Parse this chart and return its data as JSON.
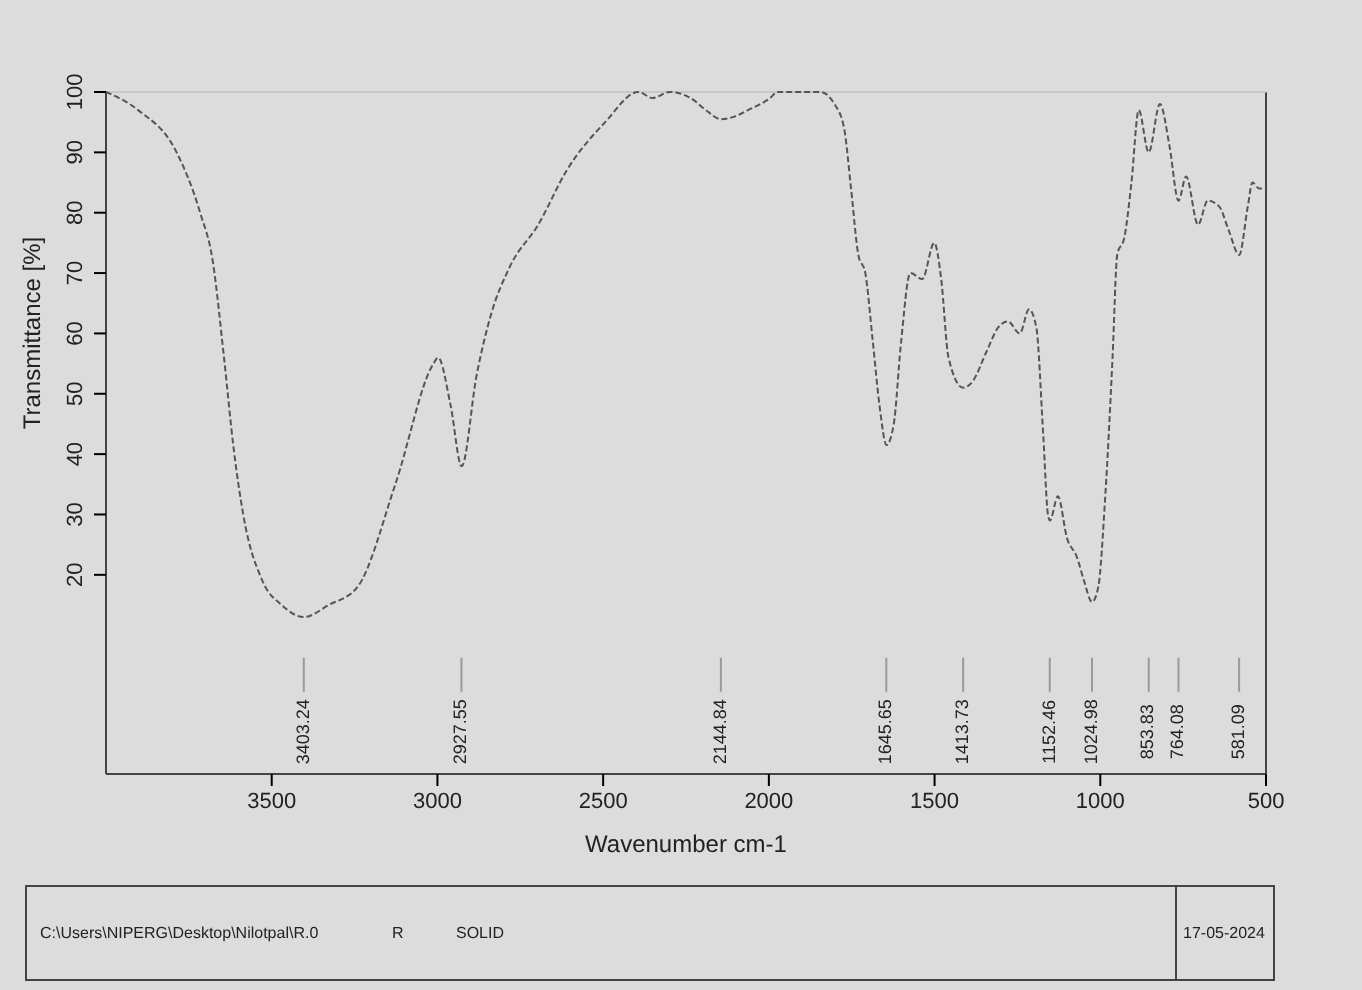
{
  "chart_data": {
    "type": "line",
    "xlabel": "Wavenumber cm-1",
    "ylabel": "Transmittance [%]",
    "xlim": [
      4000,
      500
    ],
    "xticks": [
      3500,
      3000,
      2500,
      2000,
      1500,
      1000,
      500
    ],
    "ylim": [
      -13,
      100
    ],
    "yticks": [
      20,
      30,
      40,
      50,
      60,
      70,
      80,
      90,
      100
    ],
    "grid": false,
    "line_style": "dashed",
    "marker": "none",
    "series": [
      {
        "color": "#555555",
        "x": [
          4000,
          3903,
          3787,
          3716,
          3678,
          3644,
          3615,
          3586,
          3528,
          3470,
          3403,
          3328,
          3241,
          3127,
          3012,
          2998,
          2960,
          2927,
          2882,
          2839,
          2782,
          2696,
          2610,
          2494,
          2394,
          2351,
          2299,
          2236,
          2190,
          2145,
          2100,
          2063,
          1996,
          1974,
          1888,
          1845,
          1802,
          1773,
          1752,
          1730,
          1709,
          1687,
          1666,
          1645,
          1623,
          1602,
          1573,
          1537,
          1501,
          1480,
          1458,
          1414,
          1386,
          1343,
          1308,
          1279,
          1243,
          1215,
          1193,
          1172,
          1158,
          1152,
          1128,
          1100,
          1071,
          1049,
          1025,
          1006,
          985,
          963,
          949,
          927,
          906,
          884,
          854,
          820,
          791,
          764,
          741,
          705,
          676,
          641,
          612,
          581,
          555,
          541,
          520,
          500
        ],
        "values": [
          100,
          97,
          90,
          80,
          72,
          56,
          41,
          30,
          19,
          15,
          13,
          15,
          18,
          35,
          55,
          56,
          48,
          38,
          53,
          63,
          71,
          78,
          87,
          95,
          100,
          99,
          100,
          99,
          97,
          95.5,
          96,
          97,
          99,
          100,
          100,
          100,
          98,
          94,
          84,
          73,
          70,
          59,
          48,
          41.5,
          45,
          58,
          70,
          69,
          75,
          69,
          56,
          51,
          52,
          57,
          61,
          62,
          60,
          64,
          61,
          43,
          30,
          29,
          33,
          26,
          23,
          19,
          15.5,
          18,
          33,
          56,
          73,
          76,
          85,
          97,
          90,
          98,
          91,
          82,
          86,
          78,
          82,
          81,
          77,
          73,
          81,
          85,
          84,
          84
        ]
      }
    ],
    "ref_lines": [
      {
        "axis": "x",
        "value": 3403.24,
        "label": "3403.24"
      },
      {
        "axis": "x",
        "value": 2927.55,
        "label": "2927.55"
      },
      {
        "axis": "x",
        "value": 2144.84,
        "label": "2144.84"
      },
      {
        "axis": "x",
        "value": 1645.65,
        "label": "1645.65"
      },
      {
        "axis": "x",
        "value": 1413.73,
        "label": "1413.73"
      },
      {
        "axis": "x",
        "value": 1152.46,
        "label": "1152.46"
      },
      {
        "axis": "x",
        "value": 1024.98,
        "label": "1024.98"
      },
      {
        "axis": "x",
        "value": 853.83,
        "label": "853.83"
      },
      {
        "axis": "x",
        "value": 764.08,
        "label": "764.08"
      },
      {
        "axis": "x",
        "value": 581.09,
        "label": "581.09"
      }
    ],
    "annotations": [
      "C:\\Users\\NIPERG\\Desktop\\Nilotpal\\R.0",
      "R",
      "SOLID",
      "17-05-2024"
    ]
  }
}
